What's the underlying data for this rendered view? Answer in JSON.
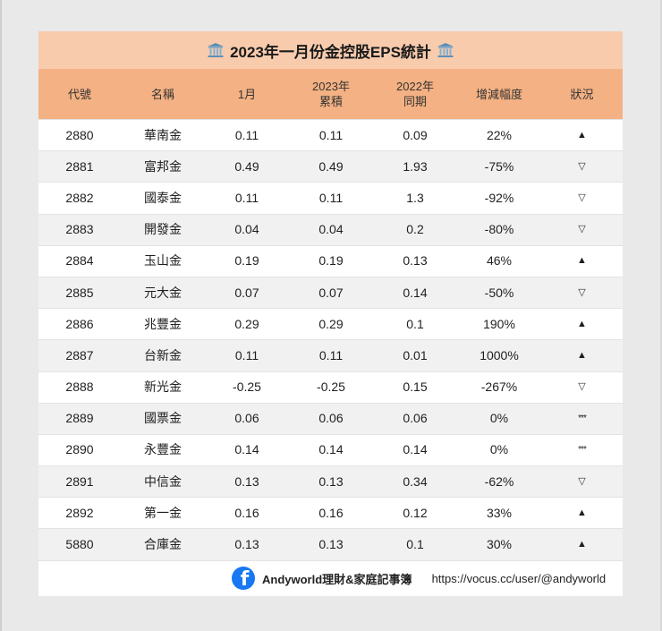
{
  "title": {
    "text": "2023年一月份金控股EPS統計",
    "icon": "bank-icon"
  },
  "columns": [
    {
      "line1": "代號",
      "line2": ""
    },
    {
      "line1": "名稱",
      "line2": ""
    },
    {
      "line1": "1月",
      "line2": ""
    },
    {
      "line1": "2023年",
      "line2": "累積"
    },
    {
      "line1": "2022年",
      "line2": "同期"
    },
    {
      "line1": "增減幅度",
      "line2": ""
    },
    {
      "line1": "狀況",
      "line2": ""
    }
  ],
  "rows": [
    {
      "code": "2880",
      "name": "華南金",
      "jan": "0.11",
      "ytd_2023": "0.11",
      "same_2022": "0.09",
      "change": "22%",
      "status": "▲",
      "status_type": "up"
    },
    {
      "code": "2881",
      "name": "富邦金",
      "jan": "0.49",
      "ytd_2023": "0.49",
      "same_2022": "1.93",
      "change": "-75%",
      "status": "▽",
      "status_type": "down"
    },
    {
      "code": "2882",
      "name": "國泰金",
      "jan": "0.11",
      "ytd_2023": "0.11",
      "same_2022": "1.3",
      "change": "-92%",
      "status": "▽",
      "status_type": "down"
    },
    {
      "code": "2883",
      "name": "開發金",
      "jan": "0.04",
      "ytd_2023": "0.04",
      "same_2022": "0.2",
      "change": "-80%",
      "status": "▽",
      "status_type": "down"
    },
    {
      "code": "2884",
      "name": "玉山金",
      "jan": "0.19",
      "ytd_2023": "0.19",
      "same_2022": "0.13",
      "change": "46%",
      "status": "▲",
      "status_type": "up"
    },
    {
      "code": "2885",
      "name": "元大金",
      "jan": "0.07",
      "ytd_2023": "0.07",
      "same_2022": "0.14",
      "change": "-50%",
      "status": "▽",
      "status_type": "down"
    },
    {
      "code": "2886",
      "name": "兆豐金",
      "jan": "0.29",
      "ytd_2023": "0.29",
      "same_2022": "0.1",
      "change": "190%",
      "status": "▲",
      "status_type": "up"
    },
    {
      "code": "2887",
      "name": "台新金",
      "jan": "0.11",
      "ytd_2023": "0.11",
      "same_2022": "0.01",
      "change": "1000%",
      "status": "▲",
      "status_type": "up"
    },
    {
      "code": "2888",
      "name": "新光金",
      "jan": "-0.25",
      "ytd_2023": "-0.25",
      "same_2022": "0.15",
      "change": "-267%",
      "status": "▽",
      "status_type": "down"
    },
    {
      "code": "2889",
      "name": "國票金",
      "jan": "0.06",
      "ytd_2023": "0.06",
      "same_2022": "0.06",
      "change": "0%",
      "status": "***",
      "status_type": "flat"
    },
    {
      "code": "2890",
      "name": "永豐金",
      "jan": "0.14",
      "ytd_2023": "0.14",
      "same_2022": "0.14",
      "change": "0%",
      "status": "***",
      "status_type": "flat"
    },
    {
      "code": "2891",
      "name": "中信金",
      "jan": "0.13",
      "ytd_2023": "0.13",
      "same_2022": "0.34",
      "change": "-62%",
      "status": "▽",
      "status_type": "down"
    },
    {
      "code": "2892",
      "name": "第一金",
      "jan": "0.16",
      "ytd_2023": "0.16",
      "same_2022": "0.12",
      "change": "33%",
      "status": "▲",
      "status_type": "up"
    },
    {
      "code": "5880",
      "name": "合庫金",
      "jan": "0.13",
      "ytd_2023": "0.13",
      "same_2022": "0.1",
      "change": "30%",
      "status": "▲",
      "status_type": "up"
    }
  ],
  "footer": {
    "icon": "facebook-icon",
    "icon_glyph": "f",
    "name": "Andyworld理財&家庭記事簿",
    "url": "https://vocus.cc/user/@andyworld"
  },
  "colors": {
    "title_bg": "#f8cbad",
    "header_bg": "#f4b183",
    "row_alt_bg": "#f1f1f1",
    "page_bg": "#e9e9e9",
    "facebook_blue": "#1877f2"
  }
}
